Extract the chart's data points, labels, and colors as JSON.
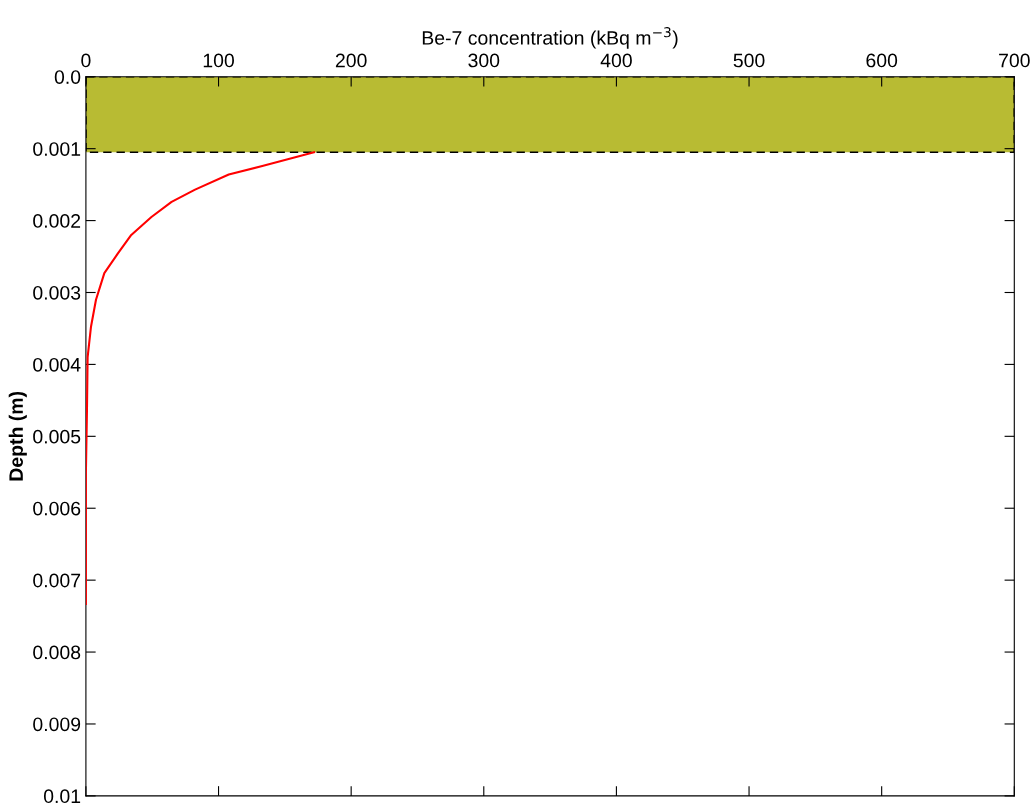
{
  "chart_data": {
    "type": "line",
    "xlabel": "Be-7 concentration (kBq m$^{−3}$)",
    "ylabel": "Depth (m)",
    "x": [
      172,
      133,
      107.7,
      82.3,
      64.6,
      49.4,
      34.2,
      24,
      13.9,
      7.6,
      3.8,
      1.3,
      0.8,
      0,
      0
    ],
    "series": [
      {
        "color": "#ff0000",
        "values": [
          0.00105,
          0.00124,
          0.00136,
          0.00157,
          0.00174,
          0.00195,
          0.0022,
          0.00246,
          0.00273,
          0.0031,
          0.00348,
          0.0039,
          0.00464,
          0.0055,
          0.00733
        ]
      }
    ],
    "xlim": [
      0,
      700
    ],
    "xticks": [
      0,
      100,
      200,
      300,
      400,
      500,
      600,
      700
    ],
    "ylim": [
      0.01,
      0
    ],
    "yticks": [
      {
        "value": 0,
        "label": "0.0"
      },
      0.001,
      0.002,
      0.003,
      0.004,
      0.005,
      0.006,
      0.007,
      0.008,
      0.009,
      0.01
    ],
    "bands": [
      {
        "axis": "y",
        "from": 0,
        "to": 0.00105,
        "color": "#b8bb33"
      }
    ]
  }
}
